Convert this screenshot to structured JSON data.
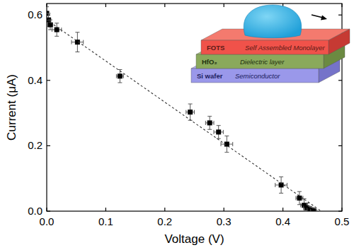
{
  "chart_data": {
    "type": "scatter",
    "x_label": "Voltage (V)",
    "y_label": "Current (μA)",
    "xlim": [
      0,
      0.5
    ],
    "ylim": [
      0,
      0.635
    ],
    "xticks": [
      {
        "value": 0,
        "label": "0.0"
      },
      0.1,
      0.2,
      0.3,
      0.4,
      0.5
    ],
    "yticks": [
      {
        "value": 0,
        "label": "0.0"
      },
      0.2,
      0.4,
      0.6
    ],
    "grid": false,
    "series": [
      {
        "type": "scatter",
        "marker": "square",
        "color": "#000000",
        "x": [
          0.0,
          0.003,
          0.006,
          0.017,
          0.052,
          0.124,
          0.243,
          0.276,
          0.291,
          0.305,
          0.397,
          0.428,
          0.436,
          0.441,
          0.446,
          0.452
        ],
        "values": [
          0.605,
          0.585,
          0.57,
          0.555,
          0.517,
          0.413,
          0.303,
          0.27,
          0.242,
          0.205,
          0.08,
          0.04,
          0.018,
          0.01,
          0.004,
          0.001
        ],
        "x_error": [
          0.003,
          0.004,
          0.004,
          0.008,
          0.01,
          0.006,
          0.007,
          0.007,
          0.008,
          0.01,
          0.01,
          0.006,
          0.006,
          0.006,
          0.005,
          0.005
        ],
        "y_error": [
          0.02,
          0.02,
          0.015,
          0.02,
          0.03,
          0.02,
          0.025,
          0.02,
          0.02,
          0.025,
          0.025,
          0.02,
          0.02,
          0.015,
          0.01,
          0.01
        ]
      },
      {
        "type": "line",
        "line_style": "dashed",
        "color": "#333333",
        "x": [
          0,
          0.465
        ],
        "values": [
          0.585,
          0
        ]
      }
    ],
    "annotations": [
      {
        "material": "FOTS",
        "role": "Self Assembled Monolayer"
      },
      {
        "material": "HfO₂",
        "role": "Dielectric layer"
      },
      {
        "material": "Si wafer",
        "role": "Semiconductor"
      }
    ]
  }
}
